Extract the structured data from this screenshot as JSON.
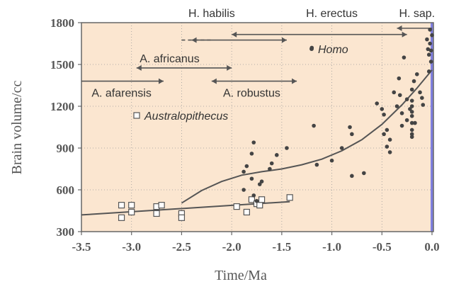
{
  "chart_data": {
    "type": "scatter",
    "xlabel": "Time/Ma",
    "ylabel": "Brain volume/cc",
    "xlim": [
      -3.5,
      0.0
    ],
    "ylim": [
      300,
      1800
    ],
    "x_ticks": [
      "-3.5",
      "-3.0",
      "-2.5",
      "-2.0",
      "-1.5",
      "-1.0",
      "-0.5",
      "0.0"
    ],
    "y_ticks": [
      "300",
      "600",
      "900",
      "1200",
      "1500",
      "1800"
    ],
    "grid": "vertical and horizontal dotted",
    "colors": {
      "plot_background": "#fbe6d0",
      "present_line": "#8080e0",
      "points": "#555555",
      "text": "#555555"
    },
    "series": [
      {
        "name": "Australopithecus",
        "marker": "open-square",
        "points": [
          [
            -3.1,
            490
          ],
          [
            -3.1,
            400
          ],
          [
            -3.0,
            490
          ],
          [
            -3.0,
            440
          ],
          [
            -2.75,
            480
          ],
          [
            -2.75,
            430
          ],
          [
            -2.7,
            490
          ],
          [
            -2.5,
            430
          ],
          [
            -2.5,
            400
          ],
          [
            -1.95,
            480
          ],
          [
            -1.85,
            440
          ],
          [
            -1.8,
            530
          ],
          [
            -1.75,
            500
          ],
          [
            -1.72,
            490
          ],
          [
            -1.7,
            530
          ],
          [
            -1.42,
            545
          ]
        ]
      },
      {
        "name": "Homo",
        "marker": "filled-circle",
        "points": [
          [
            -1.2,
            1620
          ],
          [
            -1.18,
            1060
          ],
          [
            -1.15,
            780
          ],
          [
            -1.0,
            810
          ],
          [
            -0.9,
            900
          ],
          [
            -0.82,
            1050
          ],
          [
            -0.8,
            1000
          ],
          [
            -0.8,
            700
          ],
          [
            -0.68,
            720
          ],
          [
            -1.45,
            900
          ],
          [
            -1.55,
            850
          ],
          [
            -1.6,
            790
          ],
          [
            -1.62,
            750
          ],
          [
            -1.7,
            660
          ],
          [
            -1.72,
            640
          ],
          [
            -1.78,
            940
          ],
          [
            -1.8,
            860
          ],
          [
            -1.8,
            680
          ],
          [
            -1.85,
            770
          ],
          [
            -1.88,
            730
          ],
          [
            -1.88,
            600
          ],
          [
            -1.78,
            560
          ],
          [
            -1.75,
            520
          ],
          [
            -0.55,
            1220
          ],
          [
            -0.5,
            1180
          ],
          [
            -0.48,
            1140
          ],
          [
            -0.48,
            1000
          ],
          [
            -0.45,
            1030
          ],
          [
            -0.45,
            910
          ],
          [
            -0.42,
            960
          ],
          [
            -0.42,
            870
          ],
          [
            -0.38,
            1300
          ],
          [
            -0.35,
            1200
          ],
          [
            -0.33,
            1400
          ],
          [
            -0.32,
            1280
          ],
          [
            -0.3,
            1150
          ],
          [
            -0.3,
            1060
          ],
          [
            -0.28,
            1550
          ],
          [
            -0.25,
            1250
          ],
          [
            -0.25,
            1100
          ],
          [
            -0.22,
            1180
          ],
          [
            -0.2,
            1320
          ],
          [
            -0.2,
            1000
          ],
          [
            -0.18,
            1380
          ],
          [
            -0.17,
            1080
          ],
          [
            -0.15,
            1430
          ],
          [
            -0.12,
            1300
          ],
          [
            -0.1,
            1260
          ],
          [
            -0.09,
            1210
          ],
          [
            -0.05,
            1680
          ],
          [
            -0.04,
            1610
          ],
          [
            -0.03,
            1570
          ],
          [
            -0.03,
            1450
          ],
          [
            -0.02,
            1650
          ],
          [
            -0.02,
            1750
          ],
          [
            -0.01,
            1600
          ],
          [
            -0.01,
            1520
          ],
          [
            0.0,
            1710
          ],
          [
            -0.2,
            1030
          ],
          [
            -0.2,
            1080
          ],
          [
            -0.2,
            1130
          ],
          [
            -0.2,
            1160
          ],
          [
            -0.2,
            1200
          ],
          [
            -0.2,
            980
          ],
          [
            -0.2,
            1240
          ]
        ]
      }
    ],
    "trend_lines": [
      {
        "name": "Australopithecus trend",
        "points": [
          [
            -3.5,
            420
          ],
          [
            -1.42,
            515
          ]
        ]
      },
      {
        "name": "Homo trend",
        "points": [
          [
            -2.5,
            505
          ],
          [
            -2.3,
            595
          ],
          [
            -2.1,
            660
          ],
          [
            -1.9,
            705
          ],
          [
            -1.7,
            730
          ],
          [
            -1.5,
            750
          ],
          [
            -1.3,
            780
          ],
          [
            -1.1,
            820
          ],
          [
            -0.9,
            880
          ],
          [
            -0.7,
            960
          ],
          [
            -0.5,
            1070
          ],
          [
            -0.3,
            1210
          ],
          [
            -0.15,
            1330
          ],
          [
            0.0,
            1460
          ]
        ]
      }
    ],
    "species_ranges": [
      {
        "label": "H. habilis",
        "from": -2.4,
        "to": -1.45,
        "dashed_from": -2.5,
        "dashed_to": -2.2,
        "y": 1675,
        "arrows": "both",
        "label_x": -2.2,
        "label_pos": "above-axis"
      },
      {
        "label": "H. erectus",
        "from": -2.0,
        "to": -0.25,
        "y": 1715,
        "arrows": "both",
        "label_x": -1.0,
        "label_pos": "above-axis"
      },
      {
        "label": "H. sap.",
        "from": -0.35,
        "to": 0.0,
        "y": 1760,
        "arrows": "left",
        "label_x": -0.15,
        "label_pos": "above-axis"
      },
      {
        "label": "A. africanus",
        "from": -2.95,
        "to": -2.0,
        "y": 1475,
        "arrows": "both",
        "label_x": -2.62,
        "label_pos": "above"
      },
      {
        "label": "A. afarensis",
        "from": -3.5,
        "to": -2.68,
        "y": 1380,
        "arrows": "right",
        "label_x": -3.1,
        "label_pos": "below"
      },
      {
        "label": "A. robustus",
        "from": -2.2,
        "to": -1.35,
        "y": 1380,
        "arrows": "both",
        "label_x": -1.8,
        "label_pos": "below"
      }
    ],
    "legend": [
      {
        "label": "Homo",
        "marker": "filled-circle",
        "position": "top-right"
      },
      {
        "label": "Australopithecus",
        "marker": "open-square",
        "position": "middle-left"
      }
    ]
  }
}
